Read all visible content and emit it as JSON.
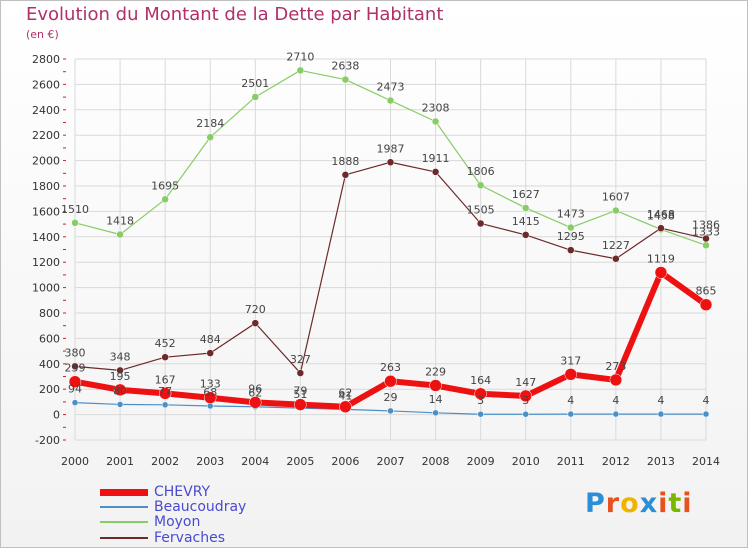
{
  "title": "Evolution du Montant de la Dette par Habitant",
  "subtitle": "(en €)",
  "colors": {
    "title": "#b0306a",
    "grid": "#d9d9d9",
    "legend_text": "#4a4ad0",
    "axis": "#333333"
  },
  "chart_data": {
    "type": "line",
    "x": [
      "2000",
      "2001",
      "2002",
      "2003",
      "2004",
      "2005",
      "2006",
      "2007",
      "2008",
      "2009",
      "2010",
      "2011",
      "2012",
      "2013",
      "2014"
    ],
    "ylim": [
      -200,
      2800
    ],
    "yticks": [
      -200,
      0,
      200,
      400,
      600,
      800,
      1000,
      1200,
      1400,
      1600,
      1800,
      2000,
      2200,
      2400,
      2600,
      2800
    ],
    "grid": true,
    "legend_position": "bottom-left",
    "series": [
      {
        "name": "Beaucoudray",
        "color": "#4a90c8",
        "marker": "#4a90c8",
        "width": 1.2,
        "radius": 3,
        "values": [
          94,
          80,
          77,
          68,
          62,
          51,
          41,
          29,
          14,
          3,
          3,
          4,
          4,
          4,
          4
        ]
      },
      {
        "name": "Moyon",
        "color": "#88cc66",
        "marker": "#88cc66",
        "width": 1.2,
        "radius": 3.5,
        "values": [
          1510,
          1418,
          1695,
          2184,
          2501,
          2710,
          2638,
          2473,
          2308,
          1806,
          1627,
          1473,
          1607,
          1458,
          1333
        ]
      },
      {
        "name": "Fervaches",
        "color": "#6e2a2a",
        "marker": "#6e2a2a",
        "width": 1.2,
        "radius": 3.5,
        "values": [
          380,
          348,
          452,
          484,
          720,
          327,
          1888,
          1987,
          1911,
          1505,
          1415,
          1295,
          1227,
          1468,
          1386
        ]
      },
      {
        "name": "CHEVRY",
        "color": "#ee1111",
        "marker": "#ee1111",
        "width": 6,
        "radius": 6,
        "values": [
          259,
          195,
          167,
          133,
          96,
          79,
          62,
          263,
          229,
          164,
          147,
          317,
          273,
          1119,
          865
        ]
      }
    ]
  },
  "legend": [
    {
      "label": "CHEVRY",
      "color": "#ee1111",
      "thickness": 7
    },
    {
      "label": "Beaucoudray",
      "color": "#4a90c8",
      "thickness": 2
    },
    {
      "label": "Moyon",
      "color": "#88cc66",
      "thickness": 2
    },
    {
      "label": "Fervaches",
      "color": "#6e2a2a",
      "thickness": 2
    }
  ],
  "logo": {
    "letters": [
      "P",
      "r",
      "o",
      "x",
      "i",
      "t",
      "i"
    ],
    "colors": [
      "#2a8fd6",
      "#e8501e",
      "#f0b400",
      "#2a8fd6",
      "#e8501e",
      "#7ab800",
      "#e8501e"
    ]
  }
}
